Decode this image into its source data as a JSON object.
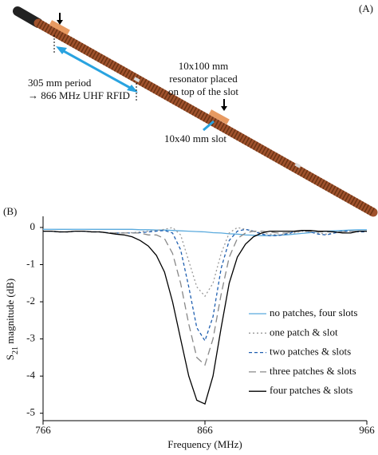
{
  "panel_a": {
    "label": "(A)",
    "period_line1": "305 mm period",
    "period_line2": "→ 866 MHz UHF RFID",
    "resonator_line1": "10x100 mm",
    "resonator_line2": "resonator placed",
    "resonator_line3": "on top of the slot",
    "slot": "10x40 mm slot"
  },
  "chart_data": {
    "type": "line",
    "panel_label": "(B)",
    "x_label": "Frequency (MHz)",
    "y_label": {
      "main": "S",
      "sub": "21",
      "rest": " magnitude (dB)"
    },
    "xlim": [
      766,
      966
    ],
    "xticks": [
      766,
      866,
      966
    ],
    "ylim": [
      -5.2,
      0.3
    ],
    "yticks": [
      0,
      -1,
      -2,
      -3,
      -4,
      -5
    ],
    "legend": "lower right",
    "x": [
      766,
      771,
      776,
      781,
      786,
      791,
      796,
      801,
      806,
      811,
      816,
      821,
      826,
      831,
      836,
      841,
      846,
      851,
      856,
      861,
      866,
      871,
      876,
      881,
      886,
      891,
      896,
      901,
      906,
      911,
      916,
      921,
      926,
      931,
      936,
      941,
      946,
      951,
      956,
      961,
      966
    ],
    "series": [
      {
        "name": "no patches, four slots",
        "color": "#5aaadd",
        "dash": "none",
        "values": [
          -0.05,
          -0.05,
          -0.05,
          -0.05,
          -0.05,
          -0.05,
          -0.05,
          -0.05,
          -0.05,
          -0.05,
          -0.05,
          -0.05,
          -0.06,
          -0.06,
          -0.07,
          -0.07,
          -0.08,
          -0.09,
          -0.1,
          -0.11,
          -0.12,
          -0.14,
          -0.15,
          -0.17,
          -0.18,
          -0.2,
          -0.21,
          -0.22,
          -0.22,
          -0.21,
          -0.2,
          -0.18,
          -0.16,
          -0.14,
          -0.12,
          -0.1,
          -0.09,
          -0.08,
          -0.07,
          -0.06,
          -0.06
        ]
      },
      {
        "name": "one patch & slot",
        "color": "#999999",
        "dash": "2,3",
        "values": [
          -0.1,
          -0.1,
          -0.12,
          -0.12,
          -0.1,
          -0.1,
          -0.12,
          -0.12,
          -0.14,
          -0.15,
          -0.15,
          -0.14,
          -0.12,
          -0.1,
          -0.08,
          -0.05,
          0.0,
          -0.2,
          -0.9,
          -1.6,
          -1.85,
          -1.5,
          -0.7,
          -0.15,
          0.0,
          -0.05,
          -0.1,
          -0.15,
          -0.18,
          -0.2,
          -0.18,
          -0.15,
          -0.1,
          -0.12,
          -0.15,
          -0.18,
          -0.15,
          -0.12,
          -0.1,
          -0.1,
          -0.1
        ]
      },
      {
        "name": "two patches & slots",
        "color": "#1f5fb0",
        "dash": "4,3",
        "values": [
          -0.1,
          -0.1,
          -0.12,
          -0.12,
          -0.1,
          -0.1,
          -0.12,
          -0.12,
          -0.14,
          -0.15,
          -0.15,
          -0.15,
          -0.14,
          -0.12,
          -0.1,
          -0.08,
          -0.15,
          -0.6,
          -1.6,
          -2.7,
          -3.05,
          -2.4,
          -1.1,
          -0.35,
          -0.1,
          -0.05,
          -0.1,
          -0.18,
          -0.22,
          -0.22,
          -0.18,
          -0.12,
          -0.08,
          -0.12,
          -0.18,
          -0.2,
          -0.15,
          -0.1,
          -0.1,
          -0.12,
          -0.12
        ]
      },
      {
        "name": "three patches & slots",
        "color": "#888888",
        "dash": "9,5",
        "values": [
          -0.1,
          -0.1,
          -0.12,
          -0.12,
          -0.1,
          -0.1,
          -0.12,
          -0.12,
          -0.14,
          -0.15,
          -0.15,
          -0.15,
          -0.15,
          -0.2,
          -0.2,
          -0.3,
          -0.7,
          -1.5,
          -2.6,
          -3.5,
          -3.7,
          -3.0,
          -1.8,
          -0.8,
          -0.3,
          -0.15,
          -0.1,
          -0.1,
          -0.12,
          -0.15,
          -0.15,
          -0.12,
          -0.1,
          -0.1,
          -0.12,
          -0.12,
          -0.12,
          -0.12,
          -0.1,
          -0.1,
          -0.1
        ]
      },
      {
        "name": "four patches & slots",
        "color": "#000000",
        "dash": "none",
        "values": [
          -0.1,
          -0.1,
          -0.12,
          -0.12,
          -0.1,
          -0.1,
          -0.12,
          -0.12,
          -0.15,
          -0.18,
          -0.2,
          -0.25,
          -0.35,
          -0.5,
          -0.75,
          -1.2,
          -2.0,
          -3.0,
          -4.0,
          -4.65,
          -4.75,
          -4.0,
          -2.7,
          -1.5,
          -0.8,
          -0.45,
          -0.25,
          -0.15,
          -0.1,
          -0.1,
          -0.1,
          -0.1,
          -0.08,
          -0.08,
          -0.1,
          -0.1,
          -0.12,
          -0.15,
          -0.15,
          -0.1,
          -0.1
        ]
      }
    ]
  }
}
